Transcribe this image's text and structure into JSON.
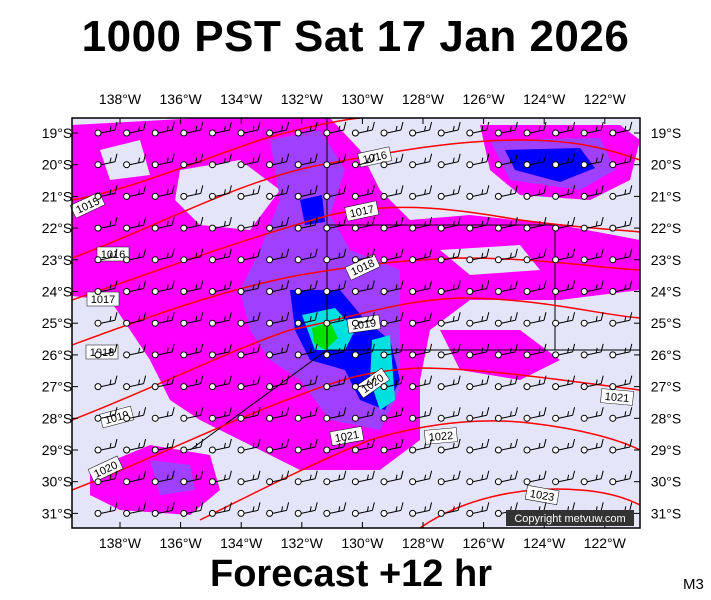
{
  "header": {
    "title": "1000 PST Sat 17 Jan 2026"
  },
  "footer": {
    "forecast": "Forecast +12 hr",
    "model_code": "M3"
  },
  "copyright": "Copyright metvuw.com",
  "map": {
    "lon_labels": [
      "138°W",
      "136°W",
      "134°W",
      "132°W",
      "130°W",
      "128°W",
      "126°W",
      "124°W",
      "122°W"
    ],
    "lat_labels": [
      "19°S",
      "20°S",
      "21°S",
      "22°S",
      "23°S",
      "24°S",
      "25°S",
      "26°S",
      "27°S",
      "28°S",
      "29°S",
      "30°S",
      "31°S"
    ],
    "isobar_labels": [
      "1015",
      "1016",
      "1017",
      "1018",
      "1019",
      "1020",
      "1021",
      "1022",
      "1023",
      "1016",
      "1017",
      "1018",
      "1019",
      "1020",
      "1021"
    ],
    "colors": {
      "background": "#e5e5fa",
      "rain_light": "#ff00ff",
      "rain_medium": "#a040ff",
      "rain_heavy": "#0000ff",
      "rain_very_heavy": "#00e0e0",
      "rain_extreme": "#00e000",
      "isobar": "#ff0000"
    }
  }
}
